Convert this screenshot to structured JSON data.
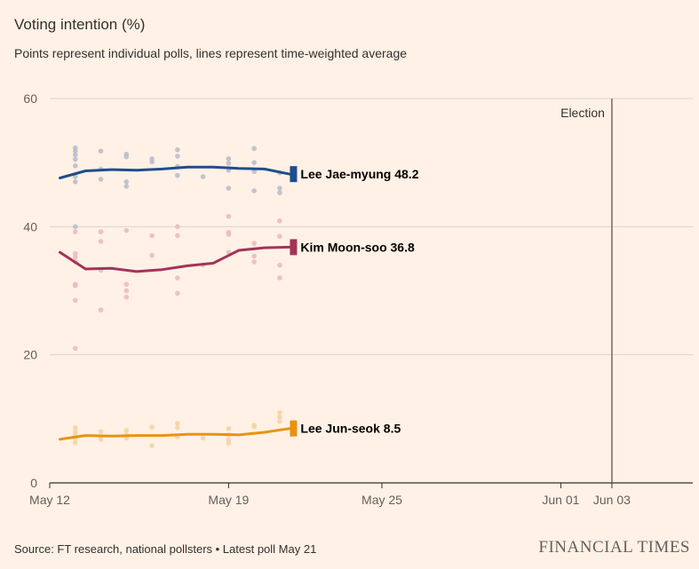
{
  "header": {
    "title": "Voting intention (%)",
    "subtitle": "Points represent individual polls, lines represent time-weighted average"
  },
  "footer": {
    "source": "Source: FT research, national pollsters • Latest poll May 21",
    "brand": "FINANCIAL TIMES"
  },
  "chart_data": {
    "type": "scatter",
    "title": "Voting intention (%)",
    "subtitle": "Points represent individual polls, lines represent time-weighted average",
    "xlabel": "",
    "ylabel": "",
    "x_unit": "day number in May (Jun 01 = 32, Jun 03 = 34)",
    "xlim": [
      12,
      37
    ],
    "ylim": [
      0,
      60
    ],
    "y_ticks": [
      0,
      20,
      40,
      60
    ],
    "x_ticks": [
      {
        "value": 12,
        "label": "May 12"
      },
      {
        "value": 19,
        "label": "May 19"
      },
      {
        "value": 25,
        "label": "May 25"
      },
      {
        "value": 32,
        "label": "Jun 01"
      },
      {
        "value": 34,
        "label": "Jun 03"
      }
    ],
    "grid": true,
    "annotations": [
      {
        "x": 34,
        "label": "Election",
        "kind": "vertical-line"
      }
    ],
    "series": [
      {
        "name": "Lee Jae-myung",
        "end_label": "Lee Jae-myung 48.2",
        "color": "#1f4d8c",
        "dot_color": "#b5bccb",
        "line": [
          {
            "x": 12.4,
            "y": 47.6
          },
          {
            "x": 13.4,
            "y": 48.7
          },
          {
            "x": 14.4,
            "y": 48.9
          },
          {
            "x": 15.4,
            "y": 48.8
          },
          {
            "x": 16.4,
            "y": 49.0
          },
          {
            "x": 17.4,
            "y": 49.3
          },
          {
            "x": 18.4,
            "y": 49.3
          },
          {
            "x": 19.4,
            "y": 49.1
          },
          {
            "x": 20.4,
            "y": 49.0
          },
          {
            "x": 21.4,
            "y": 48.2
          }
        ],
        "polls": [
          {
            "x": 13,
            "y": 52.3
          },
          {
            "x": 13,
            "y": 51.8
          },
          {
            "x": 13,
            "y": 51.2
          },
          {
            "x": 13,
            "y": 50.5
          },
          {
            "x": 13,
            "y": 49.5
          },
          {
            "x": 13,
            "y": 47.8
          },
          {
            "x": 13,
            "y": 47.0
          },
          {
            "x": 13,
            "y": 40.0
          },
          {
            "x": 14,
            "y": 51.8
          },
          {
            "x": 14,
            "y": 49.0
          },
          {
            "x": 14,
            "y": 47.4
          },
          {
            "x": 15,
            "y": 51.3
          },
          {
            "x": 15,
            "y": 50.9
          },
          {
            "x": 15,
            "y": 47.0
          },
          {
            "x": 15,
            "y": 46.3
          },
          {
            "x": 16,
            "y": 50.6
          },
          {
            "x": 16,
            "y": 50.1
          },
          {
            "x": 17,
            "y": 52.0
          },
          {
            "x": 17,
            "y": 51.0
          },
          {
            "x": 17,
            "y": 49.4
          },
          {
            "x": 17,
            "y": 48.0
          },
          {
            "x": 18,
            "y": 47.8
          },
          {
            "x": 19,
            "y": 50.6
          },
          {
            "x": 19,
            "y": 49.9
          },
          {
            "x": 19,
            "y": 48.8
          },
          {
            "x": 19,
            "y": 46.0
          },
          {
            "x": 20,
            "y": 52.2
          },
          {
            "x": 20,
            "y": 50.0
          },
          {
            "x": 20,
            "y": 48.6
          },
          {
            "x": 20,
            "y": 45.6
          },
          {
            "x": 21,
            "y": 48.4
          },
          {
            "x": 21,
            "y": 46.0
          },
          {
            "x": 21,
            "y": 45.3
          }
        ]
      },
      {
        "name": "Kim Moon-soo",
        "end_label": "Kim Moon-soo 36.8",
        "color": "#a3335a",
        "dot_color": "#e9b9bf",
        "line": [
          {
            "x": 12.4,
            "y": 36.0
          },
          {
            "x": 13.4,
            "y": 33.4
          },
          {
            "x": 14.4,
            "y": 33.5
          },
          {
            "x": 15.4,
            "y": 33.0
          },
          {
            "x": 16.4,
            "y": 33.3
          },
          {
            "x": 17.4,
            "y": 33.9
          },
          {
            "x": 18.4,
            "y": 34.3
          },
          {
            "x": 19.4,
            "y": 36.3
          },
          {
            "x": 20.4,
            "y": 36.7
          },
          {
            "x": 21.4,
            "y": 36.8
          }
        ],
        "polls": [
          {
            "x": 13,
            "y": 39.2
          },
          {
            "x": 13,
            "y": 35.8
          },
          {
            "x": 13,
            "y": 35.2
          },
          {
            "x": 13,
            "y": 34.5
          },
          {
            "x": 13,
            "y": 31.0
          },
          {
            "x": 13,
            "y": 30.8
          },
          {
            "x": 13,
            "y": 28.5
          },
          {
            "x": 13,
            "y": 21.0
          },
          {
            "x": 14,
            "y": 39.2
          },
          {
            "x": 14,
            "y": 37.7
          },
          {
            "x": 14,
            "y": 33.2
          },
          {
            "x": 14,
            "y": 27.0
          },
          {
            "x": 15,
            "y": 39.4
          },
          {
            "x": 15,
            "y": 31.0
          },
          {
            "x": 15,
            "y": 30.0
          },
          {
            "x": 15,
            "y": 29.0
          },
          {
            "x": 16,
            "y": 38.6
          },
          {
            "x": 16,
            "y": 35.5
          },
          {
            "x": 17,
            "y": 40.0
          },
          {
            "x": 17,
            "y": 38.6
          },
          {
            "x": 17,
            "y": 32.0
          },
          {
            "x": 17,
            "y": 29.6
          },
          {
            "x": 18,
            "y": 34.0
          },
          {
            "x": 19,
            "y": 41.6
          },
          {
            "x": 19,
            "y": 39.1
          },
          {
            "x": 19,
            "y": 38.8
          },
          {
            "x": 19,
            "y": 36.0
          },
          {
            "x": 20,
            "y": 37.4
          },
          {
            "x": 20,
            "y": 35.4
          },
          {
            "x": 20,
            "y": 34.5
          },
          {
            "x": 21,
            "y": 40.9
          },
          {
            "x": 21,
            "y": 38.5
          },
          {
            "x": 21,
            "y": 34.0
          },
          {
            "x": 21,
            "y": 32.0
          }
        ]
      },
      {
        "name": "Lee Jun-seok",
        "end_label": "Lee Jun-seok 8.5",
        "color": "#e8930f",
        "dot_color": "#f3d49f",
        "line": [
          {
            "x": 12.4,
            "y": 6.8
          },
          {
            "x": 13.4,
            "y": 7.4
          },
          {
            "x": 14.4,
            "y": 7.3
          },
          {
            "x": 15.4,
            "y": 7.4
          },
          {
            "x": 16.4,
            "y": 7.4
          },
          {
            "x": 17.4,
            "y": 7.6
          },
          {
            "x": 18.4,
            "y": 7.6
          },
          {
            "x": 19.4,
            "y": 7.5
          },
          {
            "x": 20.4,
            "y": 7.9
          },
          {
            "x": 21.4,
            "y": 8.5
          }
        ],
        "polls": [
          {
            "x": 13,
            "y": 8.6
          },
          {
            "x": 13,
            "y": 8.0
          },
          {
            "x": 13,
            "y": 7.5
          },
          {
            "x": 13,
            "y": 7.0
          },
          {
            "x": 13,
            "y": 6.3
          },
          {
            "x": 14,
            "y": 8.0
          },
          {
            "x": 14,
            "y": 7.2
          },
          {
            "x": 14,
            "y": 6.8
          },
          {
            "x": 15,
            "y": 8.2
          },
          {
            "x": 15,
            "y": 7.5
          },
          {
            "x": 15,
            "y": 7.0
          },
          {
            "x": 16,
            "y": 8.7
          },
          {
            "x": 16,
            "y": 5.8
          },
          {
            "x": 17,
            "y": 9.3
          },
          {
            "x": 17,
            "y": 8.6
          },
          {
            "x": 17,
            "y": 7.2
          },
          {
            "x": 18,
            "y": 7.0
          },
          {
            "x": 19,
            "y": 8.5
          },
          {
            "x": 19,
            "y": 7.5
          },
          {
            "x": 19,
            "y": 6.7
          },
          {
            "x": 19,
            "y": 6.2
          },
          {
            "x": 20,
            "y": 9.0
          },
          {
            "x": 20,
            "y": 8.8
          },
          {
            "x": 21,
            "y": 11.0
          },
          {
            "x": 21,
            "y": 10.3
          },
          {
            "x": 21,
            "y": 9.6
          }
        ]
      }
    ]
  }
}
